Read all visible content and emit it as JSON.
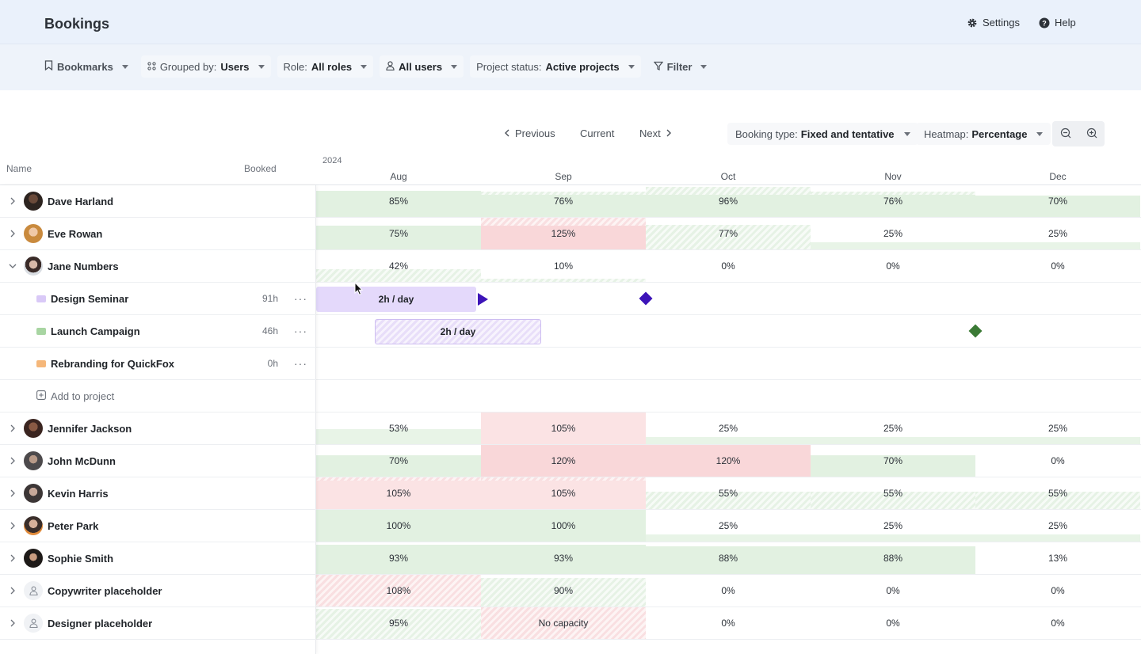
{
  "header": {
    "title": "Bookings",
    "settings_label": "Settings",
    "help_label": "Help"
  },
  "filters": {
    "bookmarks": "Bookmarks",
    "grouped_prefix": "Grouped by:",
    "grouped_value": "Users",
    "role_prefix": "Role:",
    "role_value": "All roles",
    "users_value": "All users",
    "status_prefix": "Project status:",
    "status_value": "Active projects",
    "filter_label": "Filter"
  },
  "toolbar": {
    "previous": "Previous",
    "current": "Current",
    "next": "Next",
    "booking_type_prefix": "Booking type:",
    "booking_type_value": "Fixed and tentative",
    "heatmap_prefix": "Heatmap:",
    "heatmap_value": "Percentage"
  },
  "table": {
    "col_name": "Name",
    "col_booked": "Booked",
    "year": "2024",
    "months": [
      "Aug",
      "Sep",
      "Oct",
      "Nov",
      "Dec"
    ]
  },
  "people": {
    "dave": {
      "name": "Dave Harland",
      "values": [
        "85%",
        "76%",
        "96%",
        "76%",
        "70%"
      ]
    },
    "eve": {
      "name": "Eve Rowan",
      "values": [
        "75%",
        "125%",
        "77%",
        "25%",
        "25%"
      ]
    },
    "jane": {
      "name": "Jane Numbers",
      "values": [
        "42%",
        "10%",
        "0%",
        "0%",
        "0%"
      ]
    },
    "jennifer": {
      "name": "Jennifer Jackson",
      "values": [
        "53%",
        "105%",
        "25%",
        "25%",
        "25%"
      ]
    },
    "john": {
      "name": "John McDunn",
      "values": [
        "70%",
        "120%",
        "120%",
        "70%",
        "0%"
      ]
    },
    "kevin": {
      "name": "Kevin Harris",
      "values": [
        "105%",
        "105%",
        "55%",
        "55%",
        "55%"
      ]
    },
    "peter": {
      "name": "Peter Park",
      "values": [
        "100%",
        "100%",
        "25%",
        "25%",
        "25%"
      ]
    },
    "sophie": {
      "name": "Sophie Smith",
      "values": [
        "93%",
        "93%",
        "88%",
        "88%",
        "13%"
      ]
    },
    "copywriter": {
      "name": "Copywriter placeholder",
      "values": [
        "108%",
        "90%",
        "0%",
        "0%",
        "0%"
      ]
    },
    "designer": {
      "name": "Designer placeholder",
      "values": [
        "95%",
        "No capacity",
        "0%",
        "0%",
        "0%"
      ]
    }
  },
  "projects": {
    "design": {
      "name": "Design Seminar",
      "hours": "91h",
      "booking": "2h / day",
      "color": "#d9c9f7"
    },
    "launch": {
      "name": "Launch Campaign",
      "hours": "46h",
      "booking": "2h / day",
      "color": "#a8d5a2"
    },
    "rebrand": {
      "name": "Rebranding for QuickFox",
      "hours": "0h",
      "color": "#f5b77a"
    },
    "add_label": "Add to project"
  },
  "colors": {
    "milestone_purple": "#3d14b8",
    "milestone_green": "#3b7a35"
  }
}
